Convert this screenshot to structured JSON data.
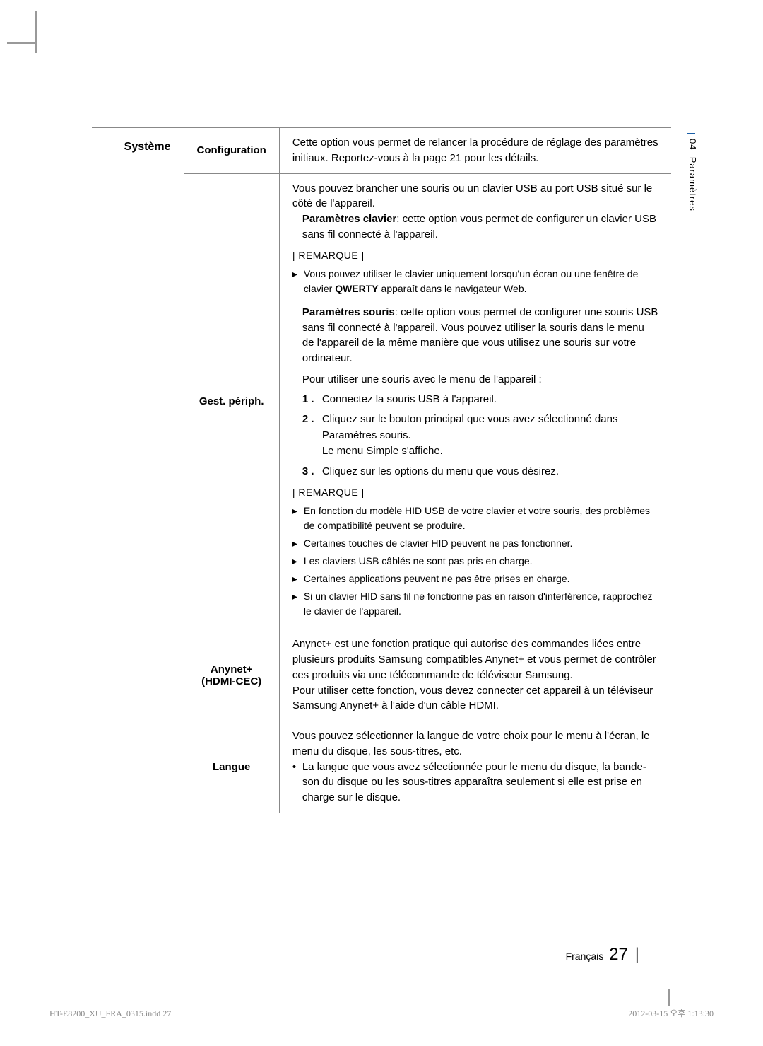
{
  "sideTab": {
    "num": "04",
    "label": "Paramètres"
  },
  "category": "Système",
  "rows": {
    "configuration": {
      "label": "Configuration",
      "text": "Cette option vous permet de relancer la procédure de réglage des paramètres initiaux. Reportez-vous à la page 21 pour les détails."
    },
    "gestPeriph": {
      "label": "Gest. périph.",
      "intro": "Vous pouvez brancher une souris ou un clavier USB au port USB situé sur le côté de l'appareil.",
      "clavierBold": "Paramètres clavier",
      "clavierText": ": cette option vous permet de configurer un clavier USB sans fil connecté à l'appareil.",
      "remarque1": "| REMARQUE |",
      "bullets1": [
        "Vous pouvez utiliser le clavier uniquement lorsqu'un écran ou une fenêtre de clavier QWERTY apparaît dans le navigateur Web."
      ],
      "sourisBold": "Paramètres souris",
      "sourisText": ": cette option vous permet de configurer une souris USB sans fil connecté à l'appareil. Vous pouvez utiliser la souris dans le menu de l'appareil de la même manière que vous utilisez une souris sur votre ordinateur.",
      "mouseIntro": "Pour utiliser une souris avec le menu de l'appareil :",
      "steps": [
        "Connectez la souris USB à l'appareil.",
        "Cliquez sur le bouton principal que vous avez sélectionné dans Paramètres souris.\nLe menu Simple s'affiche.",
        "Cliquez sur les options du menu que vous désirez."
      ],
      "remarque2": "| REMARQUE |",
      "bullets2": [
        "En fonction du modèle HID USB de votre clavier et votre souris, des problèmes de compatibilité peuvent se produire.",
        "Certaines touches de clavier HID peuvent ne pas fonctionner.",
        "Les claviers USB câblés ne sont pas pris en charge.",
        "Certaines applications peuvent ne pas être prises en charge.",
        "Si un clavier HID sans fil ne fonctionne pas en raison d'interférence, rapprochez le clavier de l'appareil."
      ]
    },
    "anynet": {
      "label1": "Anynet+",
      "label2": "(HDMI-CEC)",
      "text": "Anynet+ est une fonction pratique qui autorise des commandes liées entre plusieurs produits Samsung compatibles Anynet+ et vous permet de contrôler ces produits via une télécommande de téléviseur Samsung.\nPour utiliser cette fonction, vous devez connecter cet appareil à un téléviseur Samsung Anynet+ à l'aide d'un câble HDMI."
    },
    "langue": {
      "label": "Langue",
      "intro": "Vous pouvez sélectionner la langue de votre choix pour le menu à l'écran, le menu du disque, les sous-titres, etc.",
      "bullet": "La langue que vous avez sélectionnée pour le menu du disque, la bande-son du disque ou les sous-titres apparaîtra seulement si elle est prise en charge sur le disque."
    }
  },
  "footer": {
    "lang": "Français",
    "pageNum": "27"
  },
  "printFooter": {
    "left": "HT-E8200_XU_FRA_0315.indd   27",
    "right": "2012-03-15   오후 1:13:30"
  }
}
